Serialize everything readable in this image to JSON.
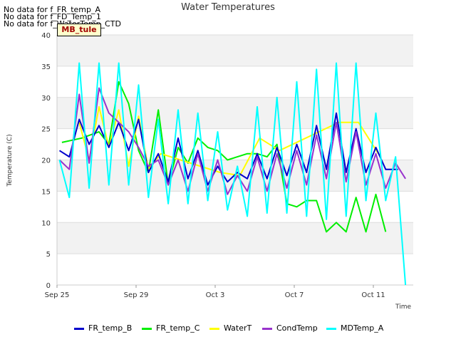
{
  "notes": [
    "No data for f_FR_temp_A",
    "No data for f_FD_Temp_1",
    "No data for f_WaterTemp_CTD"
  ],
  "badge": "MB_tule",
  "colors": {
    "FR_temp_B": "#0000cc",
    "FR_temp_C": "#00ee00",
    "WaterT": "#ffff00",
    "CondTemp": "#9933cc",
    "MDTemp_A": "#00ffff"
  },
  "chart_data": {
    "type": "line",
    "title": "Water Temperatures",
    "xlabel": "Time",
    "ylabel": "Temperature (C)",
    "ylim": [
      0,
      40
    ],
    "xlim": [
      "2023-09-25",
      "2023-10-13"
    ],
    "yticks": [
      0,
      5,
      10,
      15,
      20,
      25,
      30,
      35,
      40
    ],
    "xticks": [
      "Sep 25",
      "Sep 29",
      "Oct 3",
      "Oct 7",
      "Oct 11"
    ],
    "grid": true,
    "legend_position": "bottom",
    "x_dates": [
      "Sep 25",
      "Sep 26",
      "Sep 27",
      "Sep 28",
      "Sep 29",
      "Sep 30",
      "Oct 1",
      "Oct 2",
      "Oct 3",
      "Oct 4",
      "Oct 5",
      "Oct 6",
      "Oct 7",
      "Oct 8",
      "Oct 9",
      "Oct 10",
      "Oct 11",
      "Oct 12"
    ],
    "series": [
      {
        "name": "FR_temp_B",
        "x": [
          "Sep 25",
          "Sep 25",
          "Sep 26",
          "Sep 26",
          "Sep 27",
          "Sep 27",
          "Sep 28",
          "Sep 28",
          "Sep 29",
          "Sep 29",
          "Sep 30",
          "Sep 30",
          "Oct 1",
          "Oct 1",
          "Oct 2",
          "Oct 2",
          "Oct 3",
          "Oct 3",
          "Oct 4",
          "Oct 4",
          "Oct 5",
          "Oct 5",
          "Oct 6",
          "Oct 6",
          "Oct 7",
          "Oct 7",
          "Oct 8",
          "Oct 8",
          "Oct 9",
          "Oct 9",
          "Oct 10",
          "Oct 10",
          "Oct 11",
          "Oct 11",
          "Oct 12"
        ],
        "y": [
          21.5,
          20.5,
          26.5,
          22.5,
          25.5,
          22.0,
          26.0,
          21.5,
          26.5,
          18.0,
          21.0,
          16.5,
          23.5,
          17.0,
          21.5,
          16.0,
          19.0,
          16.5,
          18.0,
          17.0,
          21.0,
          17.0,
          22.0,
          17.5,
          22.5,
          18.0,
          25.5,
          18.5,
          27.5,
          18.0,
          25.0,
          18.0,
          22.0,
          18.5,
          18.5
        ]
      },
      {
        "name": "FR_temp_C",
        "x": [
          "Sep 25",
          "Sep 26",
          "Sep 27",
          "Sep 27",
          "Sep 28",
          "Sep 28",
          "Sep 29",
          "Sep 29",
          "Sep 30",
          "Sep 30",
          "Oct 1",
          "Oct 1",
          "Oct 2",
          "Oct 2",
          "Oct 3",
          "Oct 3",
          "Oct 4",
          "Oct 4",
          "Oct 5",
          "Oct 5",
          "Oct 6",
          "Oct 6",
          "Oct 7",
          "Oct 7",
          "Oct 8",
          "Oct 8",
          "Oct 9",
          "Oct 9",
          "Oct 10",
          "Oct 10",
          "Oct 11",
          "Oct 11"
        ],
        "y": [
          22.8,
          23.5,
          24.5,
          22.5,
          32.5,
          29.0,
          21.5,
          18.0,
          28.0,
          16.0,
          22.0,
          19.5,
          23.5,
          22.0,
          21.5,
          20.0,
          20.5,
          21.0,
          21.0,
          20.5,
          22.5,
          13.0,
          12.5,
          13.5,
          13.5,
          8.5,
          10.0,
          8.5,
          14.0,
          8.5,
          14.5,
          8.5
        ]
      },
      {
        "name": "WaterT",
        "x": [
          "Sep 26",
          "Sep 26",
          "Sep 27",
          "Sep 27",
          "Sep 28",
          "Sep 28",
          "Sep 29",
          "Sep 29",
          "Sep 30",
          "Oct 1",
          "Oct 2",
          "Oct 3",
          "Oct 4",
          "Oct 5",
          "Oct 6",
          "Oct 7",
          "Oct 8",
          "Oct 9",
          "Oct 10",
          "Oct 11"
        ],
        "y": [
          26.0,
          20.0,
          28.5,
          22.0,
          28.0,
          19.0,
          27.0,
          18.5,
          21.0,
          20.0,
          19.0,
          18.0,
          17.5,
          23.5,
          21.5,
          23.0,
          24.5,
          26.0,
          26.0,
          21.0
        ]
      },
      {
        "name": "CondTemp",
        "x": [
          "Sep 25",
          "Sep 25",
          "Sep 26",
          "Sep 26",
          "Sep 27",
          "Sep 27",
          "Sep 28",
          "Sep 28",
          "Sep 29",
          "Sep 29",
          "Sep 30",
          "Sep 30",
          "Oct 1",
          "Oct 1",
          "Oct 2",
          "Oct 2",
          "Oct 3",
          "Oct 3",
          "Oct 4",
          "Oct 4",
          "Oct 5",
          "Oct 5",
          "Oct 6",
          "Oct 6",
          "Oct 7",
          "Oct 7",
          "Oct 8",
          "Oct 8",
          "Oct 9",
          "Oct 9",
          "Oct 10",
          "Oct 10",
          "Oct 11",
          "Oct 11",
          "Oct 12",
          "Oct 12"
        ],
        "y": [
          20.0,
          18.5,
          30.5,
          19.5,
          31.5,
          27.5,
          26.0,
          24.5,
          22.0,
          19.0,
          20.0,
          16.0,
          20.0,
          15.0,
          21.0,
          15.0,
          20.0,
          14.5,
          17.5,
          15.0,
          20.5,
          15.0,
          21.0,
          15.5,
          21.5,
          16.0,
          24.0,
          17.0,
          26.0,
          16.5,
          24.5,
          16.0,
          21.0,
          15.5,
          19.5,
          17.0
        ]
      },
      {
        "name": "MDTemp_A",
        "x": [
          "Sep 25",
          "Sep 25",
          "Sep 26",
          "Sep 26",
          "Sep 27",
          "Sep 27",
          "Sep 28",
          "Sep 28",
          "Sep 29",
          "Sep 29",
          "Sep 30",
          "Sep 30",
          "Oct 1",
          "Oct 1",
          "Oct 2",
          "Oct 2",
          "Oct 3",
          "Oct 3",
          "Oct 4",
          "Oct 4",
          "Oct 5",
          "Oct 5",
          "Oct 6",
          "Oct 6",
          "Oct 7",
          "Oct 7",
          "Oct 8",
          "Oct 8",
          "Oct 9",
          "Oct 9",
          "Oct 10",
          "Oct 10",
          "Oct 11",
          "Oct 11",
          "Oct 12",
          "Oct 12"
        ],
        "y": [
          20.0,
          14.0,
          35.5,
          15.5,
          35.5,
          16.0,
          35.5,
          16.0,
          32.0,
          14.0,
          26.5,
          13.0,
          28.0,
          13.0,
          27.5,
          13.5,
          24.5,
          12.0,
          19.0,
          11.0,
          28.5,
          11.5,
          30.0,
          11.5,
          32.5,
          11.0,
          34.5,
          10.5,
          35.5,
          11.0,
          35.5,
          13.5,
          27.5,
          13.5,
          20.5,
          0.0
        ]
      }
    ]
  }
}
